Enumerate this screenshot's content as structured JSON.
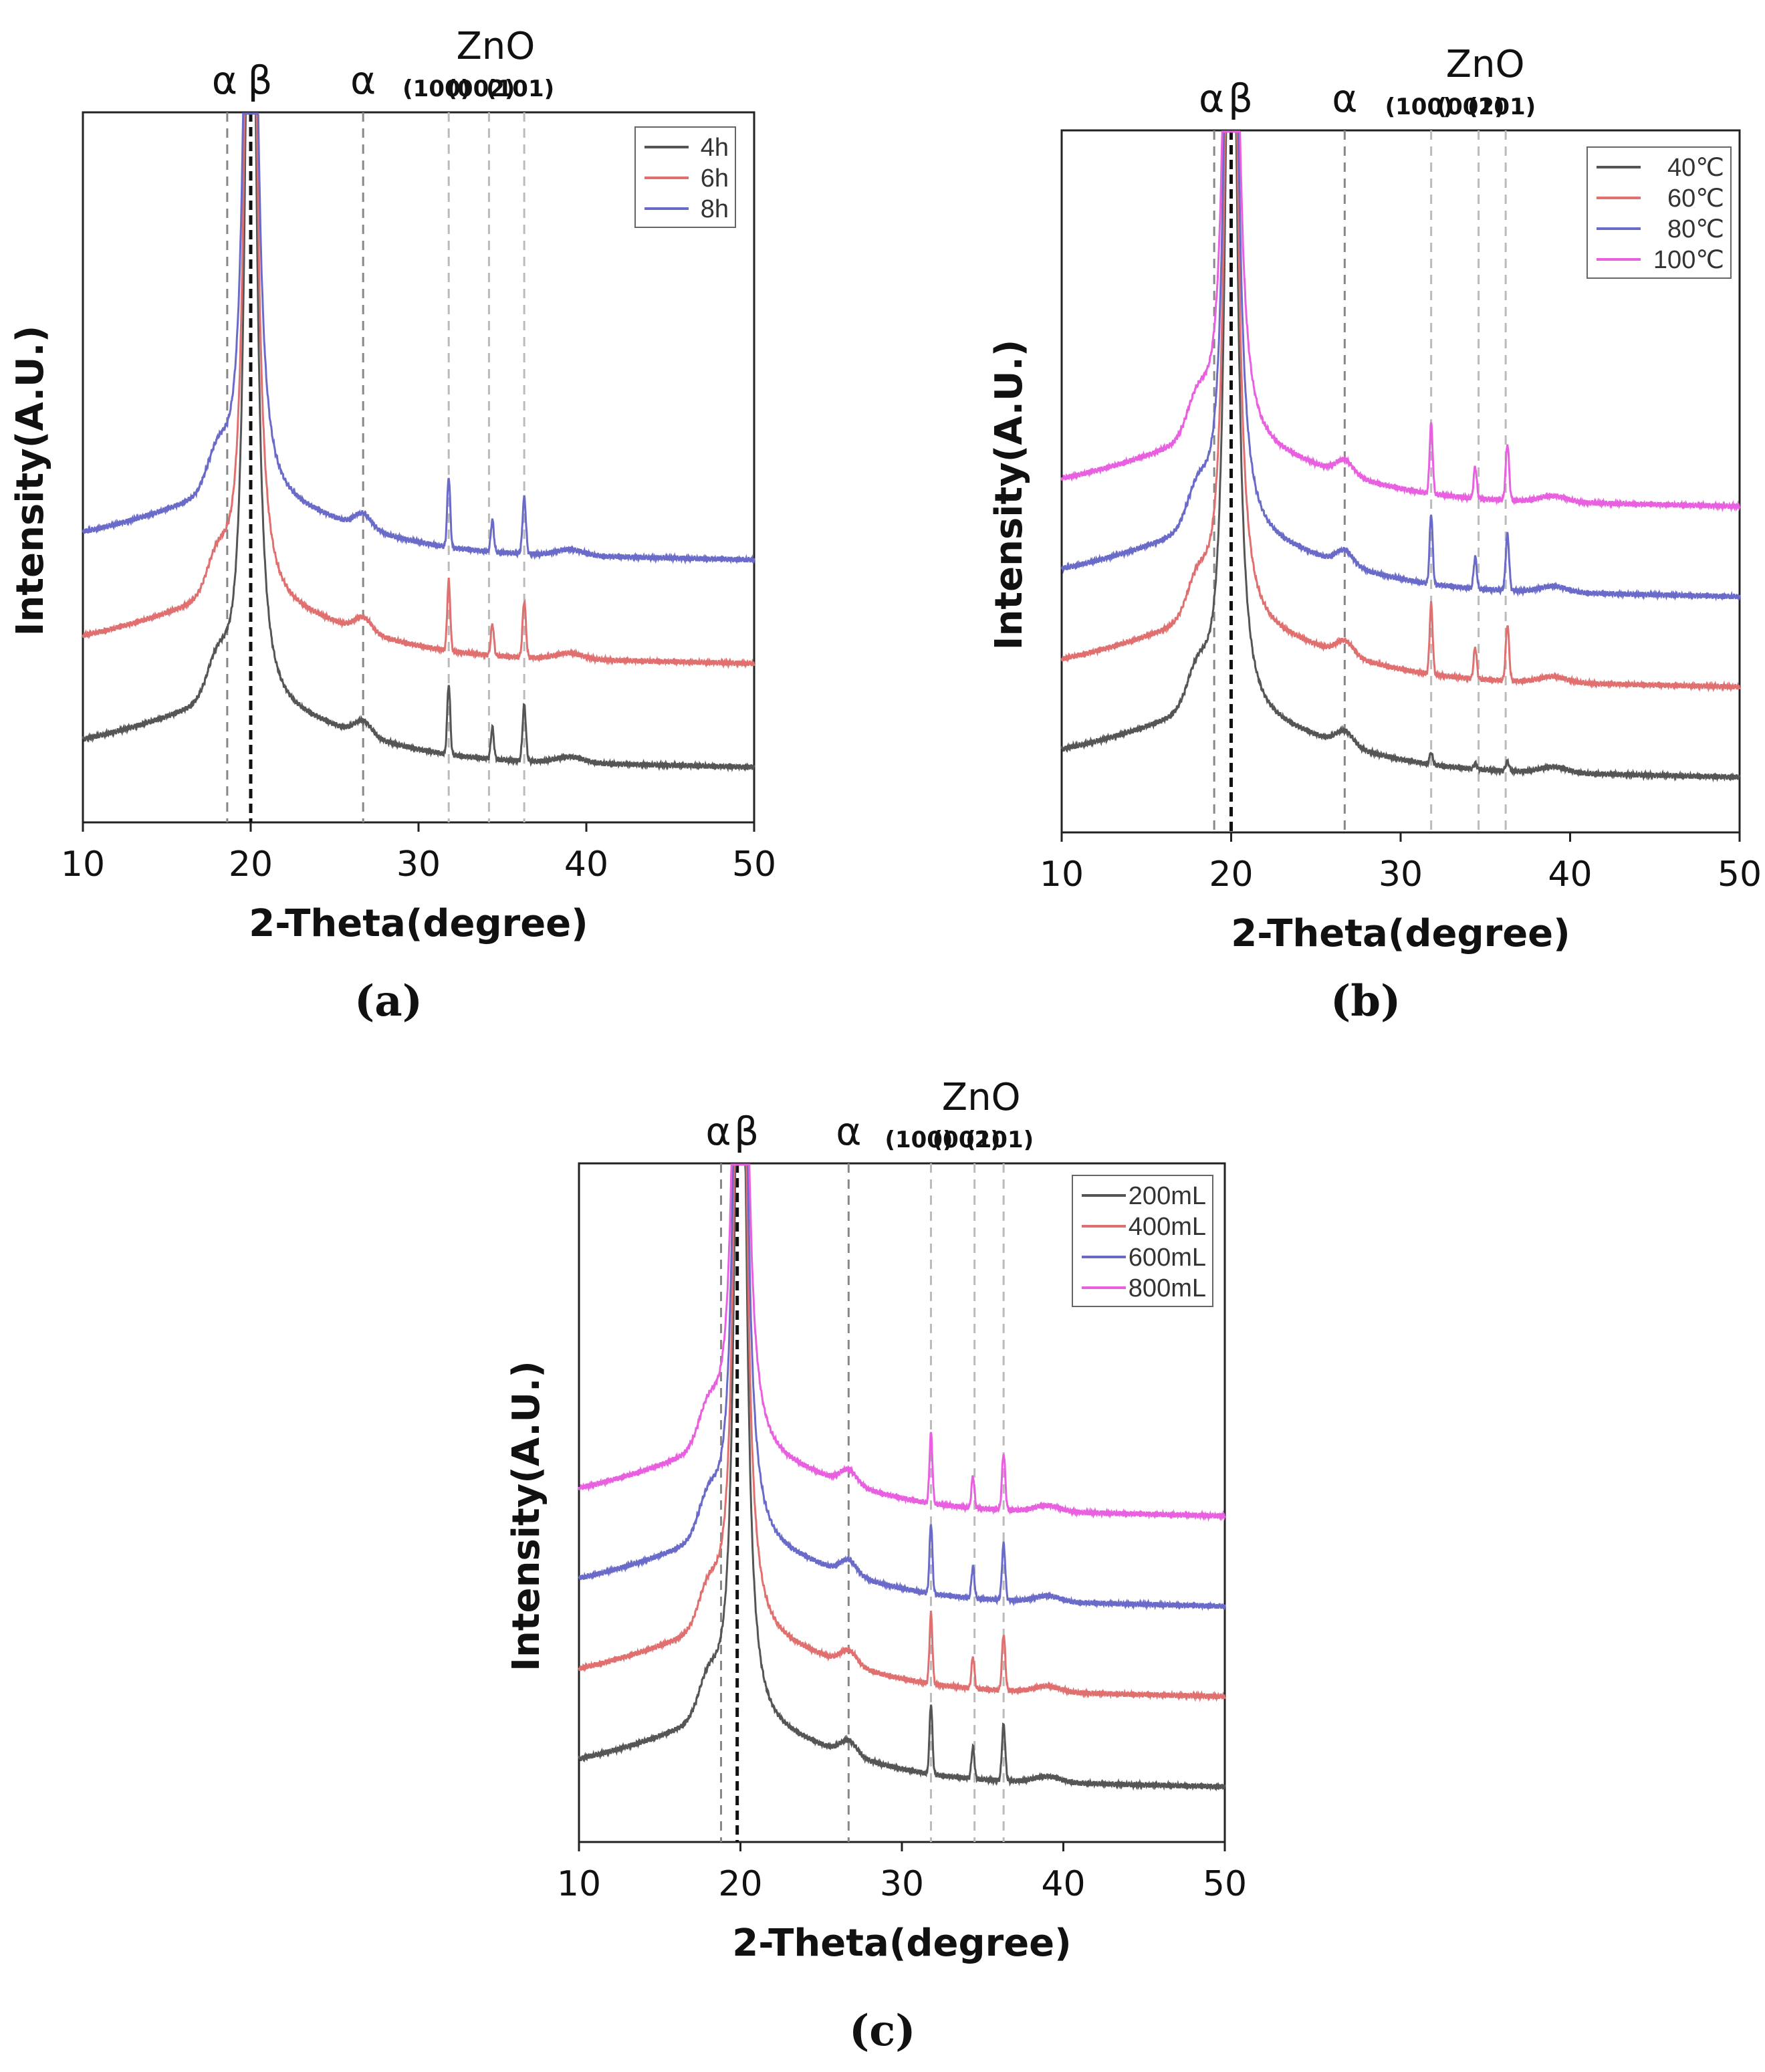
{
  "chart_data": [
    {
      "panel": "(a)",
      "type": "line",
      "xlabel": "2-Theta(degree)",
      "ylabel": "Intensity(A.U.)",
      "xlim": [
        10,
        50
      ],
      "xticks": [
        10,
        20,
        30,
        40,
        50
      ],
      "legend_position": "top-right",
      "annotations": {
        "alpha": "α",
        "beta": "β",
        "zno": "ZnO",
        "hkl": [
          "(100)",
          "(002)",
          "(101)"
        ]
      },
      "reference_lines": [
        18.6,
        20.0,
        26.7,
        31.8,
        34.2,
        36.3
      ],
      "series": [
        {
          "name": "4h",
          "color": "#555555",
          "offset": 0
        },
        {
          "name": "6h",
          "color": "#e07070",
          "offset": 1
        },
        {
          "name": "8h",
          "color": "#6a6ac8",
          "offset": 2
        }
      ]
    },
    {
      "panel": "(b)",
      "type": "line",
      "xlabel": "2-Theta(degree)",
      "ylabel": "Intensity(A.U.)",
      "xlim": [
        10,
        50
      ],
      "xticks": [
        10,
        20,
        30,
        40,
        50
      ],
      "legend_position": "top-right",
      "annotations": {
        "alpha": "α",
        "beta": "β",
        "zno": "ZnO",
        "hkl": [
          "(100)",
          "(002)",
          "(101)"
        ]
      },
      "reference_lines": [
        19.0,
        20.0,
        26.7,
        31.8,
        34.6,
        36.2
      ],
      "series": [
        {
          "name": "40℃",
          "color": "#555555",
          "offset": 0
        },
        {
          "name": "60℃",
          "color": "#e07070",
          "offset": 1
        },
        {
          "name": "80℃",
          "color": "#6a6ac8",
          "offset": 2
        },
        {
          "name": "100℃",
          "color": "#e860e0",
          "offset": 3
        }
      ]
    },
    {
      "panel": "(c)",
      "type": "line",
      "xlabel": "2-Theta(degree)",
      "ylabel": "Intensity(A.U.)",
      "xlim": [
        10,
        50
      ],
      "xticks": [
        10,
        20,
        30,
        40,
        50
      ],
      "legend_position": "top-right",
      "annotations": {
        "alpha": "α",
        "beta": "β",
        "zno": "ZnO",
        "hkl": [
          "(100)",
          "(002)",
          "(101)"
        ]
      },
      "reference_lines": [
        18.8,
        19.8,
        26.7,
        31.8,
        34.5,
        36.3
      ],
      "series": [
        {
          "name": "200mL",
          "color": "#555555",
          "offset": 0
        },
        {
          "name": "400mL",
          "color": "#e07070",
          "offset": 1
        },
        {
          "name": "600mL",
          "color": "#6a6ac8",
          "offset": 2
        },
        {
          "name": "800mL",
          "color": "#e860e0",
          "offset": 3
        }
      ]
    }
  ]
}
